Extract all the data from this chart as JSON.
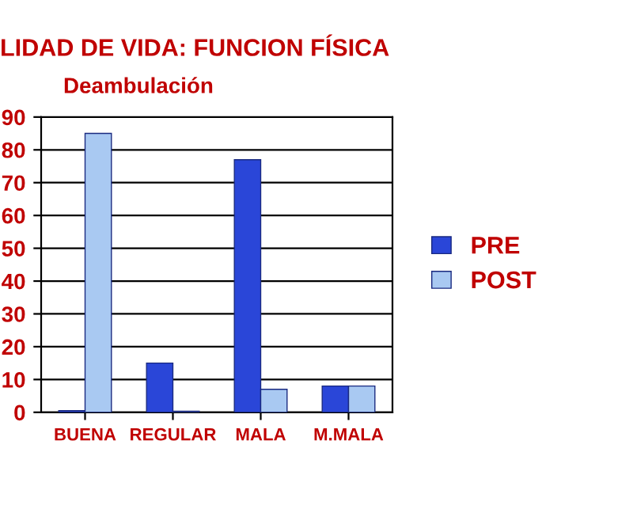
{
  "chart_data": {
    "type": "bar",
    "title": "LIDAD DE VIDA: FUNCION FÍSICA",
    "subtitle": "Deambulación",
    "categories": [
      "BUENA",
      "REGULAR",
      "MALA",
      "M.MALA"
    ],
    "series": [
      {
        "name": "PRE",
        "color": "#2a46d8",
        "values": [
          0.5,
          15,
          77,
          8
        ]
      },
      {
        "name": "POST",
        "color": "#a9c9f2",
        "values": [
          85,
          0.3,
          7,
          8
        ]
      }
    ],
    "ylim": [
      0,
      90
    ],
    "yticks": [
      0,
      10,
      20,
      30,
      40,
      50,
      60,
      70,
      80,
      90
    ],
    "grid": "y",
    "legend": "right"
  }
}
